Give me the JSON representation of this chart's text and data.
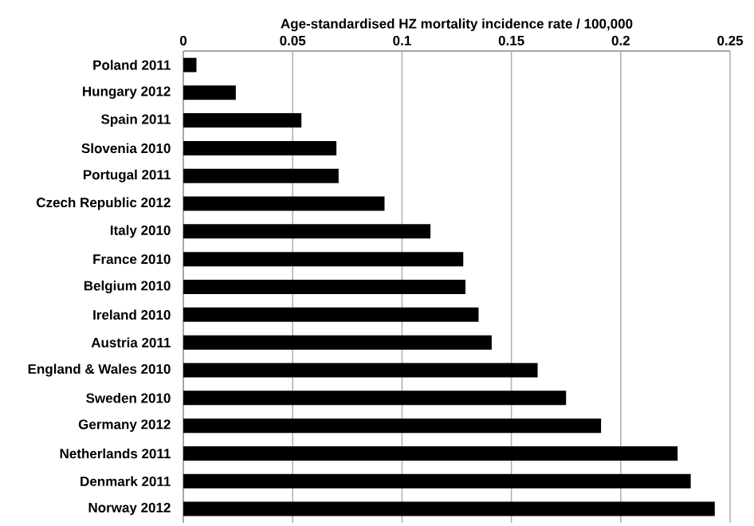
{
  "chart_data": {
    "type": "bar",
    "orientation": "horizontal",
    "xlabel": "Age-standardised HZ mortality incidence rate / 100,000",
    "categories": [
      "Poland 2011",
      "Hungary 2012",
      "Spain 2011",
      "Slovenia 2010",
      "Portugal 2011",
      "Czech Republic 2012",
      "Italy 2010",
      "France 2010",
      "Belgium 2010",
      "Ireland 2010",
      "Austria 2011",
      "England & Wales 2010",
      "Sweden 2010",
      "Germany 2012",
      "Netherlands 2011",
      "Denmark 2011",
      "Norway 2012"
    ],
    "values": [
      0.006,
      0.024,
      0.054,
      0.07,
      0.071,
      0.092,
      0.113,
      0.128,
      0.129,
      0.135,
      0.141,
      0.162,
      0.175,
      0.191,
      0.226,
      0.232,
      0.243
    ],
    "color": "#000000",
    "xlim": [
      0,
      0.25
    ],
    "xticks": [
      0,
      0.05,
      0.1,
      0.15,
      0.2,
      0.25
    ],
    "grid": "x"
  }
}
